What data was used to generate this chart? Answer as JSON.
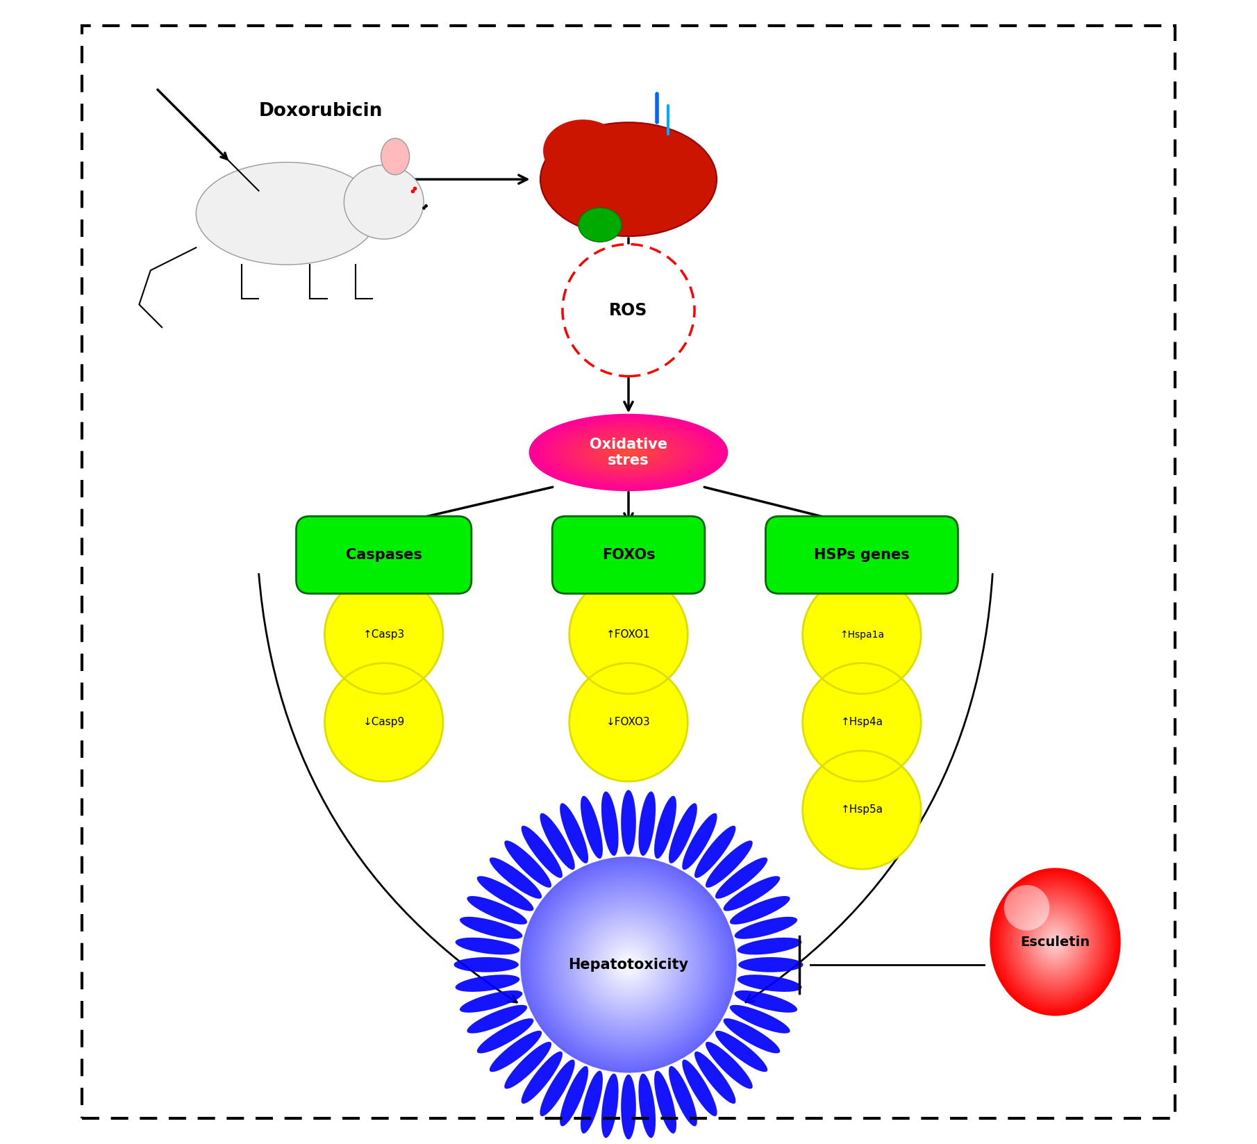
{
  "background_color": "#ffffff",
  "fig_w": 18.1,
  "fig_h": 16.47,
  "dpi": 100,
  "doxorubicin_label": "Doxorubicin",
  "ros_label": "ROS",
  "oxidative_label": "Oxidative\nstres",
  "caspases_label": "Caspases",
  "foxos_label": "FOXOs",
  "hsps_label": "HSPs genes",
  "hepatotoxicity_label": "Hepatotoxicity",
  "esculetin_label": "Esculetin",
  "yellow_labels": [
    "↑Casp3",
    "↓Casp9",
    "↑FOXO1",
    "↓FOXO3",
    "↑Hspa1a",
    "↑Hsp4a",
    "↑Hsp5a"
  ],
  "green_color": "#00ee00",
  "green_edge": "#006600",
  "magenta_color": "#ff00cc",
  "yellow_color": "#ffff00",
  "blue_center": "#3333ff",
  "red_esculetin": "#ff2200"
}
